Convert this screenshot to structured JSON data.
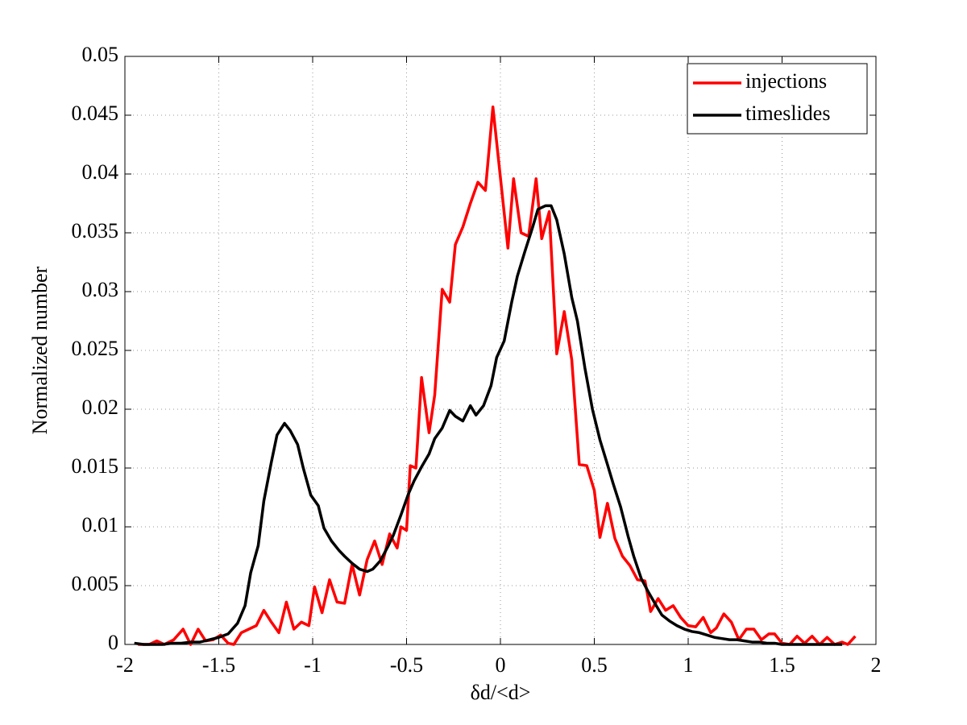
{
  "chart_data": {
    "type": "line",
    "xlabel": "δd/<d>",
    "ylabel": "Normalized number",
    "xlim": [
      -2,
      2
    ],
    "ylim": [
      0,
      0.05
    ],
    "xticks": [
      -2,
      -1.5,
      -1,
      -0.5,
      0,
      0.5,
      1,
      1.5,
      2
    ],
    "yticks": [
      0,
      0.005,
      0.01,
      0.015,
      0.02,
      0.025,
      0.03,
      0.035,
      0.04,
      0.045,
      0.05
    ],
    "grid": true,
    "legend": "upper right",
    "series": [
      {
        "name": "injections",
        "color": "#ff0000",
        "x": [
          -1.93,
          -1.87,
          -1.83,
          -1.79,
          -1.74,
          -1.69,
          -1.65,
          -1.61,
          -1.57,
          -1.53,
          -1.49,
          -1.45,
          -1.42,
          -1.38,
          -1.34,
          -1.3,
          -1.26,
          -1.22,
          -1.18,
          -1.14,
          -1.1,
          -1.06,
          -1.02,
          -0.99,
          -0.95,
          -0.91,
          -0.87,
          -0.83,
          -0.79,
          -0.75,
          -0.71,
          -0.67,
          -0.63,
          -0.59,
          -0.55,
          -0.53,
          -0.5,
          -0.48,
          -0.45,
          -0.42,
          -0.38,
          -0.35,
          -0.31,
          -0.27,
          -0.24,
          -0.2,
          -0.16,
          -0.12,
          -0.08,
          -0.04,
          0.04,
          0.07,
          0.11,
          0.15,
          0.19,
          0.22,
          0.26,
          0.3,
          0.34,
          0.38,
          0.42,
          0.46,
          0.5,
          0.53,
          0.57,
          0.61,
          0.65,
          0.69,
          0.73,
          0.77,
          0.8,
          0.84,
          0.88,
          0.92,
          0.96,
          1.0,
          1.04,
          1.08,
          1.12,
          1.15,
          1.19,
          1.23,
          1.27,
          1.31,
          1.35,
          1.39,
          1.43,
          1.46,
          1.5,
          1.54,
          1.58,
          1.62,
          1.66,
          1.7,
          1.74,
          1.78,
          1.82,
          1.85,
          1.89
        ],
        "values": [
          0,
          0,
          0.0003,
          0,
          0.0004,
          0.0013,
          0,
          0.0013,
          0.0003,
          0.0004,
          0.0008,
          0.0001,
          0,
          0.001,
          0.0013,
          0.0016,
          0.0029,
          0.0019,
          0.001,
          0.0036,
          0.0013,
          0.0019,
          0.0016,
          0.0049,
          0.0027,
          0.0055,
          0.0036,
          0.0035,
          0.0068,
          0.0042,
          0.0072,
          0.0088,
          0.0068,
          0.0094,
          0.0082,
          0.01,
          0.0097,
          0.0152,
          0.015,
          0.0227,
          0.018,
          0.0212,
          0.0302,
          0.0291,
          0.034,
          0.0355,
          0.0375,
          0.0393,
          0.0386,
          0.0457,
          0.0337,
          0.0396,
          0.035,
          0.0347,
          0.0396,
          0.0345,
          0.0368,
          0.0247,
          0.0283,
          0.0242,
          0.0153,
          0.0152,
          0.0131,
          0.0091,
          0.012,
          0.009,
          0.0075,
          0.0067,
          0.0055,
          0.0054,
          0.0028,
          0.0039,
          0.0029,
          0.0033,
          0.0023,
          0.0016,
          0.0015,
          0.0023,
          0.001,
          0.0014,
          0.0026,
          0.0019,
          0.0004,
          0.0013,
          0.0013,
          0.0004,
          0.0009,
          0.0009,
          0.0001,
          0,
          0.0007,
          0.0001,
          0.0007,
          0,
          0.0006,
          0,
          0.0002,
          0,
          0.0007
        ]
      },
      {
        "name": "timeslides",
        "color": "#000000",
        "x": [
          -1.95,
          -1.9,
          -1.85,
          -1.8,
          -1.75,
          -1.7,
          -1.65,
          -1.6,
          -1.55,
          -1.5,
          -1.45,
          -1.4,
          -1.36,
          -1.33,
          -1.29,
          -1.26,
          -1.22,
          -1.19,
          -1.15,
          -1.12,
          -1.08,
          -1.05,
          -1.01,
          -0.97,
          -0.94,
          -0.9,
          -0.86,
          -0.83,
          -0.79,
          -0.75,
          -0.71,
          -0.68,
          -0.64,
          -0.6,
          -0.57,
          -0.53,
          -0.49,
          -0.46,
          -0.42,
          -0.38,
          -0.35,
          -0.31,
          -0.27,
          -0.24,
          -0.2,
          -0.16,
          -0.13,
          -0.09,
          -0.05,
          -0.02,
          0.02,
          0.06,
          0.09,
          0.13,
          0.17,
          0.2,
          0.24,
          0.27,
          0.3,
          0.34,
          0.38,
          0.41,
          0.45,
          0.49,
          0.53,
          0.57,
          0.6,
          0.64,
          0.68,
          0.71,
          0.75,
          0.79,
          0.83,
          0.86,
          0.9,
          0.94,
          0.98,
          1.02,
          1.06,
          1.1,
          1.14,
          1.18,
          1.22,
          1.26,
          1.3,
          1.34,
          1.38,
          1.42,
          1.46,
          1.5,
          1.54,
          1.58,
          1.62,
          1.66,
          1.7,
          1.74,
          1.78,
          1.82
        ],
        "values": [
          0.0001,
          0,
          0,
          0,
          0.0001,
          0.0001,
          0.0002,
          0.0002,
          0.0004,
          0.0006,
          0.0009,
          0.0018,
          0.0033,
          0.0061,
          0.0084,
          0.0122,
          0.0155,
          0.0178,
          0.0188,
          0.0182,
          0.017,
          0.015,
          0.0127,
          0.0118,
          0.0099,
          0.0088,
          0.008,
          0.0075,
          0.0069,
          0.0064,
          0.0062,
          0.0064,
          0.0071,
          0.0083,
          0.0093,
          0.011,
          0.0128,
          0.0139,
          0.0151,
          0.0162,
          0.0175,
          0.0184,
          0.0199,
          0.0194,
          0.019,
          0.0203,
          0.0195,
          0.0203,
          0.022,
          0.0244,
          0.0258,
          0.0291,
          0.0313,
          0.0334,
          0.0354,
          0.037,
          0.0373,
          0.0373,
          0.0361,
          0.0332,
          0.0295,
          0.0275,
          0.0235,
          0.02,
          0.0174,
          0.0153,
          0.0137,
          0.0117,
          0.0092,
          0.0075,
          0.0056,
          0.0044,
          0.0033,
          0.0025,
          0.002,
          0.0016,
          0.0013,
          0.0011,
          0.001,
          0.0008,
          0.0006,
          0.0005,
          0.0004,
          0.0004,
          0.0003,
          0.0002,
          0.0002,
          0.0001,
          0.0001,
          0,
          0,
          0,
          0,
          0,
          0,
          0,
          0,
          0
        ]
      }
    ]
  }
}
